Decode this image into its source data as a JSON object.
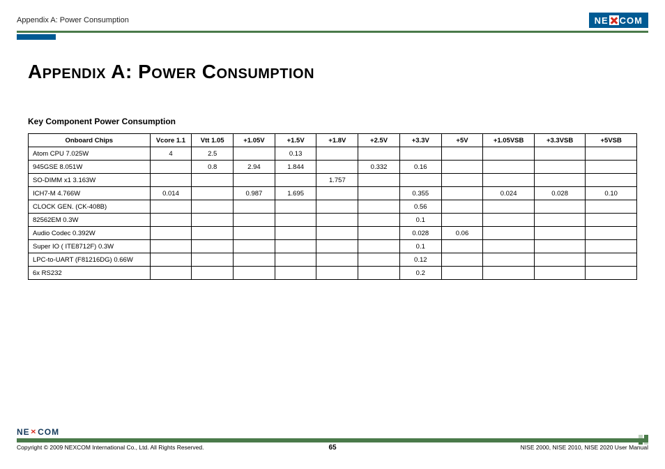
{
  "header": {
    "breadcrumb": "Appendix A: Power Consumption",
    "logo_left": "NE",
    "logo_right": "COM"
  },
  "page": {
    "title": "Appendix A: Power Consumption",
    "subtitle": "Key Component Power Consumption"
  },
  "table": {
    "columns": [
      "Onboard Chips",
      "Vcore 1.1",
      "Vtt 1.05",
      "+1.05V",
      "+1.5V",
      "+1.8V",
      "+2.5V",
      "+3.3V",
      "+5V",
      "+1.05VSB",
      "+3.3VSB",
      "+5VSB"
    ],
    "col_widths_pct": [
      19,
      6.5,
      6.5,
      6.5,
      6.5,
      6.5,
      6.5,
      6.5,
      6.5,
      8,
      8,
      8
    ],
    "rows": [
      {
        "chip": "Atom CPU 7.025W",
        "cells": [
          "4",
          "2.5",
          "",
          "0.13",
          "",
          "",
          "",
          "",
          "",
          "",
          ""
        ]
      },
      {
        "chip": "945GSE 8.051W",
        "cells": [
          "",
          "0.8",
          "2.94",
          "1.844",
          "",
          "0.332",
          "0.16",
          "",
          "",
          "",
          ""
        ]
      },
      {
        "chip": "SO-DIMM x1 3.163W",
        "cells": [
          "",
          "",
          "",
          "",
          "1.757",
          "",
          "",
          "",
          "",
          "",
          ""
        ]
      },
      {
        "chip": "ICH7-M 4.766W",
        "cells": [
          "0.014",
          "",
          "0.987",
          "1.695",
          "",
          "",
          "0.355",
          "",
          "0.024",
          "0.028",
          "0.10"
        ]
      },
      {
        "chip": "CLOCK GEN. (CK-408B)",
        "cells": [
          "",
          "",
          "",
          "",
          "",
          "",
          "0.56",
          "",
          "",
          "",
          ""
        ]
      },
      {
        "chip": "82562EM 0.3W",
        "cells": [
          "",
          "",
          "",
          "",
          "",
          "",
          "0.1",
          "",
          "",
          "",
          ""
        ]
      },
      {
        "chip": "Audio Codec 0.392W",
        "cells": [
          "",
          "",
          "",
          "",
          "",
          "",
          "0.028",
          "0.06",
          "",
          "",
          ""
        ]
      },
      {
        "chip": "Super IO ( ITE8712F) 0.3W",
        "cells": [
          "",
          "",
          "",
          "",
          "",
          "",
          "0.1",
          "",
          "",
          "",
          ""
        ]
      },
      {
        "chip": "LPC-to-UART (F81216DG) 0.66W",
        "cells": [
          "",
          "",
          "",
          "",
          "",
          "",
          "0.12",
          "",
          "",
          "",
          ""
        ]
      },
      {
        "chip": "6x RS232",
        "cells": [
          "",
          "",
          "",
          "",
          "",
          "",
          "0.2",
          "",
          "",
          "",
          ""
        ]
      }
    ]
  },
  "footer": {
    "copyright": "Copyright © 2009 NEXCOM International Co., Ltd. All Rights Reserved.",
    "page_number": "65",
    "manual": "NISE 2000, NISE 2010, NISE 2020 User Manual",
    "logo_left": "NE",
    "logo_right": "COM"
  },
  "colors": {
    "rule_green": "#4a7a4a",
    "logo_blue": "#005a93",
    "logo_red": "#d52b1e",
    "text": "#000000",
    "background": "#ffffff"
  },
  "typography": {
    "title_fontsize_pt": 21,
    "subtitle_fontsize_pt": 9,
    "table_fontsize_pt": 7,
    "footer_fontsize_pt": 6.5
  }
}
